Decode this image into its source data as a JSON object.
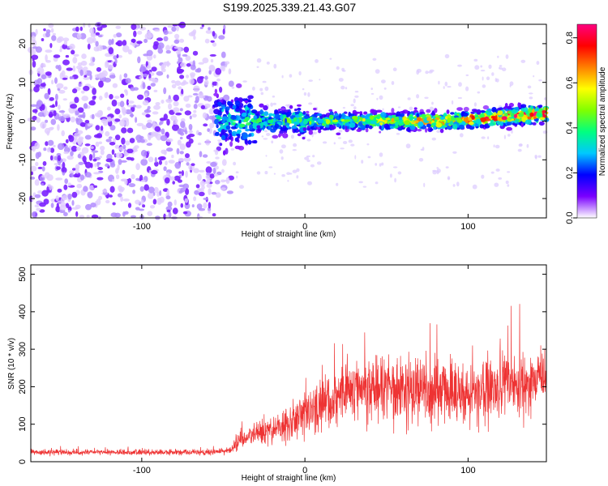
{
  "figure_title": "S199.2025.339.21.43.G07",
  "chart_data": [
    {
      "type": "heatmap",
      "title": "S199.2025.339.21.43.G07",
      "xlabel": "Height of straight line (km)",
      "ylabel": "Frequency (Hz)",
      "xlim": [
        -168,
        148
      ],
      "ylim": [
        -25,
        25
      ],
      "xticks": [
        -100,
        0,
        100
      ],
      "xtick_labels": [
        "-100",
        "0",
        "100"
      ],
      "yticks": [
        -20,
        -10,
        0,
        10,
        20
      ],
      "ytick_labels": [
        "-20",
        "-10",
        "0",
        "10",
        "20"
      ],
      "colorbar": {
        "label": "Normalized spectral amplitude",
        "range": [
          0.0,
          0.86
        ],
        "ticks": [
          0.0,
          0.2,
          0.4,
          0.6,
          0.8
        ],
        "tick_labels": [
          "0.0",
          "0.2",
          "0.4",
          "0.6",
          "0.8"
        ],
        "colormap": [
          "#ffffff",
          "#7a00ff",
          "#0000ff",
          "#00c8ff",
          "#00ff80",
          "#80ff00",
          "#ffff00",
          "#ff8000",
          "#ff0000",
          "#ff0080"
        ]
      },
      "features": {
        "noise_region_x": [
          -168,
          -55
        ],
        "signal_line_x": [
          -55,
          148
        ],
        "signal_line_frequency": [
          0,
          0
        ],
        "signal_line_end_frequency": 2
      }
    },
    {
      "type": "line",
      "xlabel": "Height of straight line (km)",
      "ylabel": "SNR (10 * v/v)",
      "xlim": [
        -168,
        148
      ],
      "ylim": [
        0,
        525
      ],
      "xticks": [
        -100,
        0,
        100
      ],
      "xtick_labels": [
        "-100",
        "0",
        "100"
      ],
      "yticks": [
        0,
        100,
        200,
        300,
        400,
        500
      ],
      "ytick_labels": [
        "0",
        "100",
        "200",
        "300",
        "400",
        "500"
      ],
      "series": [
        {
          "name": "SNR",
          "color": "#ee3333",
          "x_knots": [
            -168,
            -60,
            -45,
            -40,
            -30,
            -10,
            10,
            30,
            60,
            100,
            120,
            148
          ],
          "mean_knots": [
            25,
            25,
            30,
            60,
            70,
            100,
            150,
            200,
            200,
            180,
            200,
            220
          ],
          "spread_knots": [
            12,
            12,
            18,
            40,
            50,
            80,
            120,
            140,
            150,
            140,
            140,
            140
          ]
        }
      ]
    }
  ]
}
